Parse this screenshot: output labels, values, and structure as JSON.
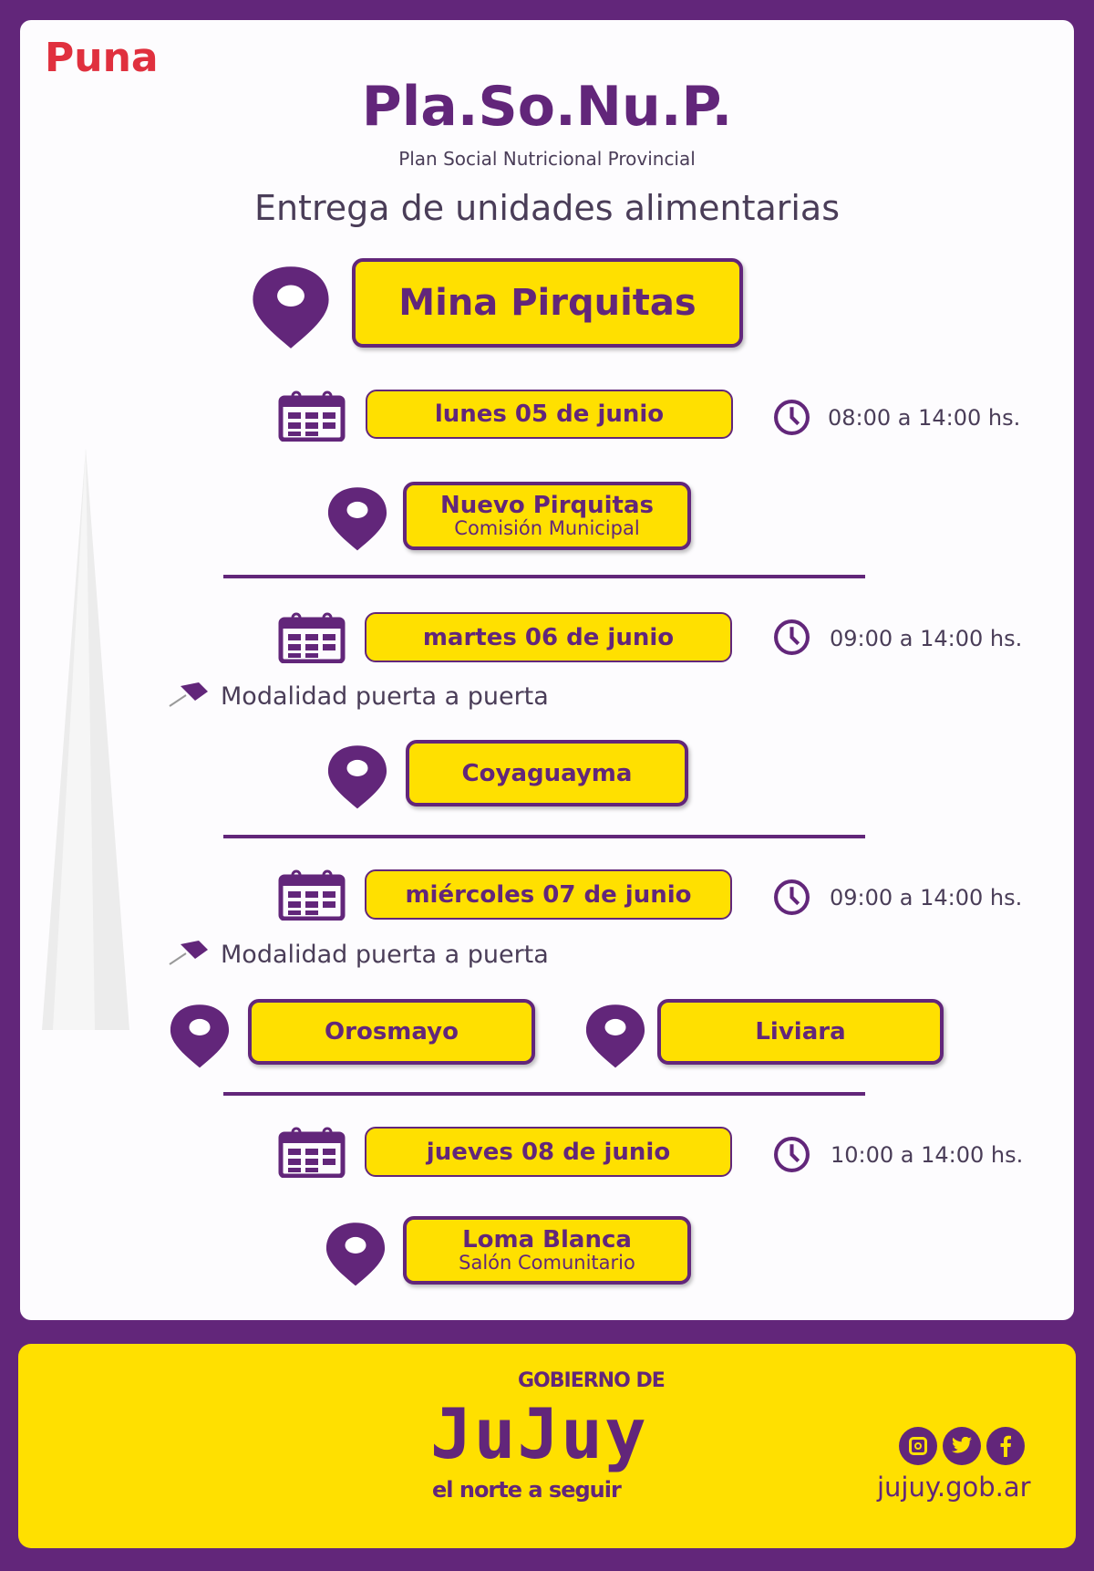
{
  "region": "Puna",
  "header": {
    "title": "Pla.So.Nu.P.",
    "subtitle": "Plan Social Nutricional Provincial",
    "heading": "Entrega de unidades alimentarias"
  },
  "main_location": "Mina Pirquitas",
  "schedule": [
    {
      "date": "lunes 05 de junio",
      "time": "08:00 a 14:00 hs.",
      "modality": "",
      "places": [
        {
          "name": "Nuevo Pirquitas",
          "detail": "Comisión Municipal"
        }
      ]
    },
    {
      "date": "martes 06 de junio",
      "time": "09:00 a 14:00 hs.",
      "modality": "Modalidad puerta a puerta",
      "places": [
        {
          "name": "Coyaguayma"
        }
      ]
    },
    {
      "date": "miércoles 07 de junio",
      "time": "09:00 a 14:00 hs.",
      "modality": "Modalidad puerta a puerta",
      "places": [
        {
          "name": "Orosmayo"
        },
        {
          "name": "Liviara"
        }
      ]
    },
    {
      "date": "jueves 08 de junio",
      "time": "10:00 a 14:00 hs.",
      "modality": "",
      "places": [
        {
          "name": "Loma Blanca",
          "detail": "Salón Comunitario"
        }
      ]
    }
  ],
  "footer": {
    "logo_top": "GOBIERNO DE",
    "logo_main": "JuJuy",
    "logo_tagline": "el norte a seguir",
    "website": "jujuy.gob.ar",
    "social": [
      "instagram-icon",
      "twitter-icon",
      "facebook-icon"
    ]
  },
  "colors": {
    "purple": "#62267a",
    "yellow": "#ffe000",
    "red": "#e0303e"
  }
}
